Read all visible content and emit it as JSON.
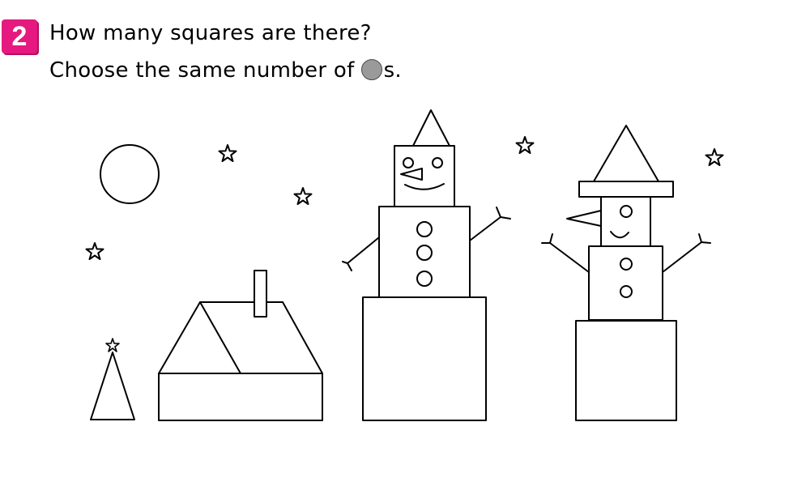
{
  "problem": {
    "number": "2",
    "question": "How many squares are there?",
    "instruction_before": "Choose the same number of",
    "instruction_after": "s."
  },
  "icons": {
    "counter": "gray-circle-counter-icon"
  },
  "colors": {
    "badge": "#e5197f",
    "counter_fill": "#9a9a9a"
  }
}
